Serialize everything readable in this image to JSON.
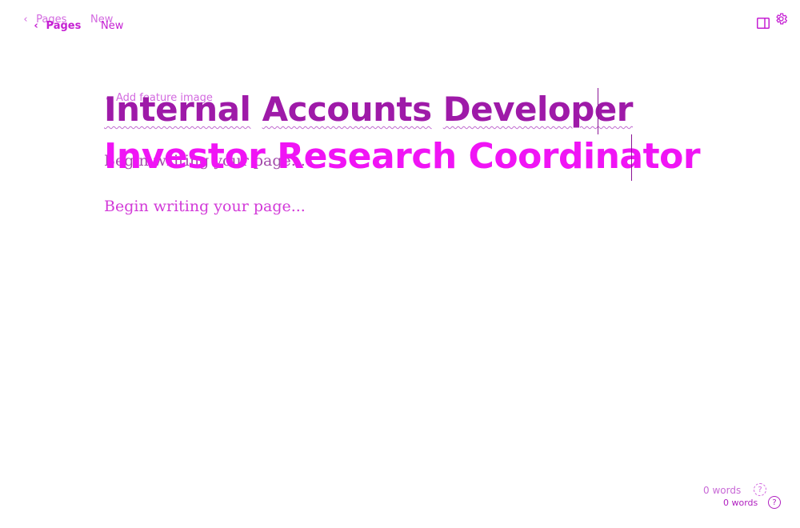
{
  "nav": {
    "back_label": "Pages",
    "new_label": "New"
  },
  "editor": {
    "feature_image_label": "Add feature image",
    "ghost_title_words": [
      "Internal",
      "Accounts",
      "Developer"
    ],
    "title": "Investor Research Coordinator",
    "body_placeholder": "Begin writing your page..."
  },
  "footer": {
    "word_count": "0 words",
    "help_label": "?"
  },
  "icons": {
    "back": "chevron-left-icon",
    "sidebar": "sidebar-toggle-icon",
    "settings": "gear-icon",
    "help": "help-circle-icon"
  },
  "colors": {
    "accent": "#f014f5",
    "accent_dark": "#9e1aa8"
  }
}
